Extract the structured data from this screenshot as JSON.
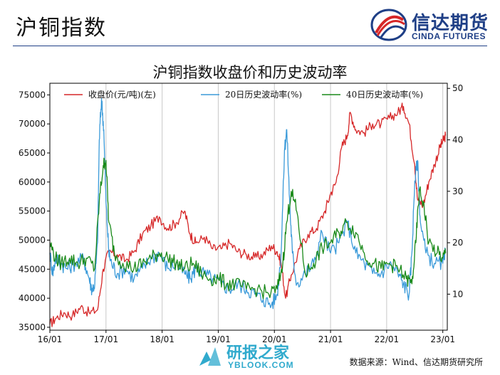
{
  "header": {
    "title": "沪铜指数"
  },
  "logo": {
    "cn_text": "信达期货",
    "en_text": "CINDA FUTURES"
  },
  "footer": {
    "source": "数据来源：Wind、信达期货研究所"
  },
  "watermark": {
    "cn_text": "研报之家",
    "en_text": "YBLOOK.COM"
  },
  "colors": {
    "price": "#d62728",
    "vol20": "#3a9ad9",
    "vol40": "#1a8a1a",
    "brand": "#1f3f86"
  },
  "chart_data": {
    "type": "line",
    "title": "沪铜指数收盘价和历史波动率",
    "legend_position": "top",
    "grid": "vertical",
    "x_ticks": [
      "16/01",
      "17/01",
      "18/01",
      "19/01",
      "20/01",
      "21/01",
      "22/01",
      "23/01"
    ],
    "x_range": [
      2016.0,
      2023.08
    ],
    "left_axis": {
      "ticks": [
        35000,
        40000,
        45000,
        50000,
        55000,
        60000,
        65000,
        70000,
        75000
      ],
      "range": [
        34500,
        77000
      ]
    },
    "right_axis": {
      "ticks": [
        10,
        20,
        30,
        40,
        50
      ],
      "range": [
        3,
        51
      ]
    },
    "series": [
      {
        "name": "收盘价(元/吨)(左)",
        "axis": "left",
        "color": "#d62728",
        "x": [
          2016.0,
          2016.1,
          2016.25,
          2016.4,
          2016.55,
          2016.7,
          2016.85,
          2016.95,
          2017.05,
          2017.2,
          2017.35,
          2017.5,
          2017.65,
          2017.8,
          2017.95,
          2018.1,
          2018.25,
          2018.4,
          2018.5,
          2018.6,
          2018.75,
          2018.9,
          2019.05,
          2019.2,
          2019.35,
          2019.5,
          2019.65,
          2019.8,
          2019.95,
          2020.05,
          2020.12,
          2020.2,
          2020.3,
          2020.45,
          2020.6,
          2020.75,
          2020.9,
          2021.0,
          2021.1,
          2021.2,
          2021.3,
          2021.35,
          2021.45,
          2021.6,
          2021.75,
          2021.9,
          2022.05,
          2022.2,
          2022.3,
          2022.4,
          2022.5,
          2022.55,
          2022.65,
          2022.75,
          2022.85,
          2022.95,
          2023.0,
          2023.05
        ],
        "values": [
          35500,
          36500,
          37500,
          37000,
          38500,
          37500,
          38000,
          45000,
          48000,
          47500,
          46500,
          48000,
          51000,
          52500,
          54000,
          52000,
          53000,
          55000,
          51000,
          49500,
          50500,
          48500,
          48500,
          49500,
          48000,
          47500,
          47000,
          47500,
          49000,
          48000,
          46000,
          40000,
          44000,
          48500,
          51000,
          52000,
          55000,
          58000,
          60000,
          66000,
          68000,
          72000,
          69000,
          68500,
          70000,
          70000,
          71000,
          72000,
          73000,
          70000,
          63000,
          57000,
          56000,
          60000,
          63000,
          66000,
          67000,
          68000
        ]
      },
      {
        "name": "20日历史波动率(%)",
        "axis": "right",
        "color": "#3a9ad9",
        "x": [
          2016.0,
          2016.05,
          2016.1,
          2016.2,
          2016.3,
          2016.45,
          2016.6,
          2016.7,
          2016.75,
          2016.8,
          2016.85,
          2016.88,
          2016.92,
          2016.96,
          2017.0,
          2017.05,
          2017.1,
          2017.2,
          2017.35,
          2017.5,
          2017.65,
          2017.8,
          2017.95,
          2018.1,
          2018.25,
          2018.4,
          2018.5,
          2018.6,
          2018.75,
          2018.9,
          2019.05,
          2019.2,
          2019.35,
          2019.5,
          2019.65,
          2019.8,
          2019.95,
          2020.05,
          2020.12,
          2020.18,
          2020.22,
          2020.28,
          2020.32,
          2020.4,
          2020.55,
          2020.7,
          2020.85,
          2021.0,
          2021.15,
          2021.3,
          2021.45,
          2021.6,
          2021.75,
          2021.9,
          2022.05,
          2022.2,
          2022.3,
          2022.4,
          2022.45,
          2022.5,
          2022.55,
          2022.6,
          2022.7,
          2022.85,
          2023.0,
          2023.05
        ],
        "values": [
          18,
          14,
          17,
          16,
          15,
          16,
          17,
          13,
          11,
          12,
          20,
          40,
          48,
          42,
          28,
          18,
          16,
          14,
          15,
          13,
          15,
          17,
          18,
          15,
          16,
          14,
          13,
          15,
          14,
          13,
          12,
          11,
          12,
          11,
          10,
          9,
          8,
          10,
          18,
          38,
          42,
          26,
          18,
          12,
          14,
          16,
          22,
          18,
          20,
          24,
          18,
          16,
          14,
          14,
          16,
          14,
          12,
          10,
          18,
          32,
          36,
          24,
          18,
          16,
          16,
          18
        ]
      },
      {
        "name": "40日历史波动率(%)",
        "axis": "right",
        "color": "#1a8a1a",
        "x": [
          2016.0,
          2016.1,
          2016.2,
          2016.35,
          2016.5,
          2016.65,
          2016.8,
          2016.88,
          2016.95,
          2017.0,
          2017.05,
          2017.15,
          2017.3,
          2017.5,
          2017.65,
          2017.8,
          2017.95,
          2018.1,
          2018.25,
          2018.4,
          2018.55,
          2018.7,
          2018.85,
          2019.0,
          2019.15,
          2019.3,
          2019.5,
          2019.7,
          2019.9,
          2020.05,
          2020.15,
          2020.22,
          2020.3,
          2020.4,
          2020.55,
          2020.7,
          2020.85,
          2021.0,
          2021.15,
          2021.3,
          2021.45,
          2021.6,
          2021.75,
          2021.9,
          2022.05,
          2022.2,
          2022.35,
          2022.45,
          2022.52,
          2022.58,
          2022.65,
          2022.75,
          2022.9,
          2023.0,
          2023.05
        ],
        "values": [
          20,
          17,
          16,
          17,
          16,
          17,
          15,
          28,
          35,
          36,
          24,
          18,
          16,
          15,
          16,
          17,
          18,
          17,
          16,
          15,
          16,
          14,
          13,
          13,
          12,
          12,
          11,
          11,
          10,
          11,
          16,
          24,
          30,
          26,
          14,
          16,
          19,
          20,
          22,
          24,
          22,
          18,
          16,
          15,
          16,
          15,
          13,
          12,
          20,
          30,
          28,
          20,
          18,
          17,
          18
        ]
      }
    ]
  }
}
